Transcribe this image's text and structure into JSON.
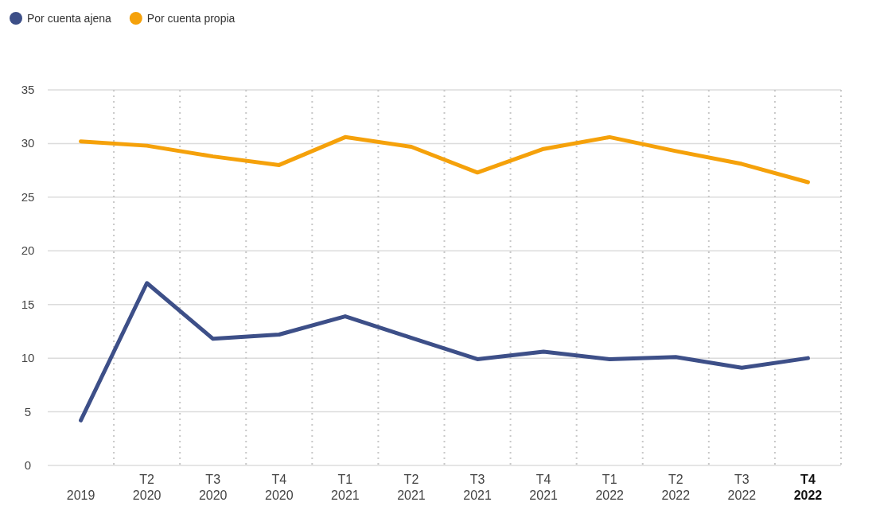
{
  "chart_data": {
    "type": "line",
    "categories": [
      "2019",
      "T2 2020",
      "T3 2020",
      "T4 2020",
      "T1 2021",
      "T2 2021",
      "T3 2021",
      "T4 2021",
      "T1 2022",
      "T2 2022",
      "T3 2022",
      "T4 2022"
    ],
    "series": [
      {
        "name": "Por cuenta ajena",
        "color": "#3d4f88",
        "values": [
          4.2,
          17.0,
          11.8,
          12.2,
          13.9,
          11.9,
          9.9,
          10.6,
          9.9,
          10.1,
          9.1,
          10.0
        ]
      },
      {
        "name": "Por cuenta propia",
        "color": "#f5a10a",
        "values": [
          30.2,
          29.8,
          28.8,
          28.0,
          30.6,
          29.7,
          27.3,
          29.5,
          30.6,
          29.3,
          28.1,
          26.4
        ]
      }
    ],
    "ylim": [
      0,
      35
    ],
    "yticks": [
      0,
      5,
      10,
      15,
      20,
      25,
      30,
      35
    ],
    "grid": true,
    "legend": "top left",
    "marker": "none",
    "line_style": "solid"
  }
}
